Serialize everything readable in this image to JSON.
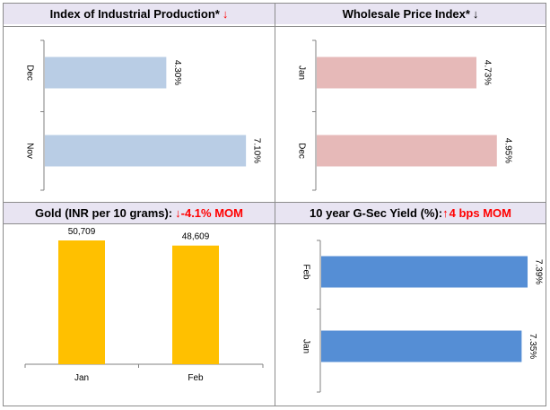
{
  "panels": {
    "iip": {
      "title": "Index of Industrial Production*",
      "arrow": "down",
      "arrow_color": "#ff0000"
    },
    "wpi": {
      "title": "Wholesale Price Index*",
      "arrow": "down",
      "arrow_color": "#000000"
    },
    "gold": {
      "title": "Gold (INR per 10 grams):",
      "change": "-4.1% MOM",
      "arrow": "down",
      "arrow_color": "#ff0000"
    },
    "gsec": {
      "title": "10 year G-Sec Yield (%):",
      "change": "4 bps MOM",
      "arrow": "up",
      "arrow_color": "#ff0000"
    }
  },
  "chart_data": [
    {
      "id": "iip",
      "type": "bar",
      "orientation": "horizontal",
      "categories": [
        "Dec",
        "Nov"
      ],
      "values": [
        4.3,
        7.1
      ],
      "data_labels": [
        "4.30%",
        "7.10%"
      ],
      "xlim": [
        0,
        7.6
      ],
      "color": "#b9cde5"
    },
    {
      "id": "wpi",
      "type": "bar",
      "orientation": "horizontal",
      "categories": [
        "Jan",
        "Dec"
      ],
      "values": [
        4.73,
        4.95
      ],
      "data_labels": [
        "4.73%",
        "4.95%"
      ],
      "xlim": [
        3.0,
        5.3
      ],
      "color": "#e6b9b8"
    },
    {
      "id": "gold",
      "type": "bar",
      "orientation": "vertical",
      "categories": [
        "Jan",
        "Feb"
      ],
      "values": [
        50709,
        48609
      ],
      "data_labels": [
        "50,709",
        "48,609"
      ],
      "ylim": [
        0,
        61000
      ],
      "color": "#ffc000"
    },
    {
      "id": "gsec",
      "type": "bar",
      "orientation": "horizontal",
      "categories": [
        "Feb",
        "Jan"
      ],
      "values": [
        7.39,
        7.35
      ],
      "data_labels": [
        "7.39%",
        "7.35%"
      ],
      "xlim": [
        6.0,
        7.45
      ],
      "color": "#558ed5"
    }
  ]
}
